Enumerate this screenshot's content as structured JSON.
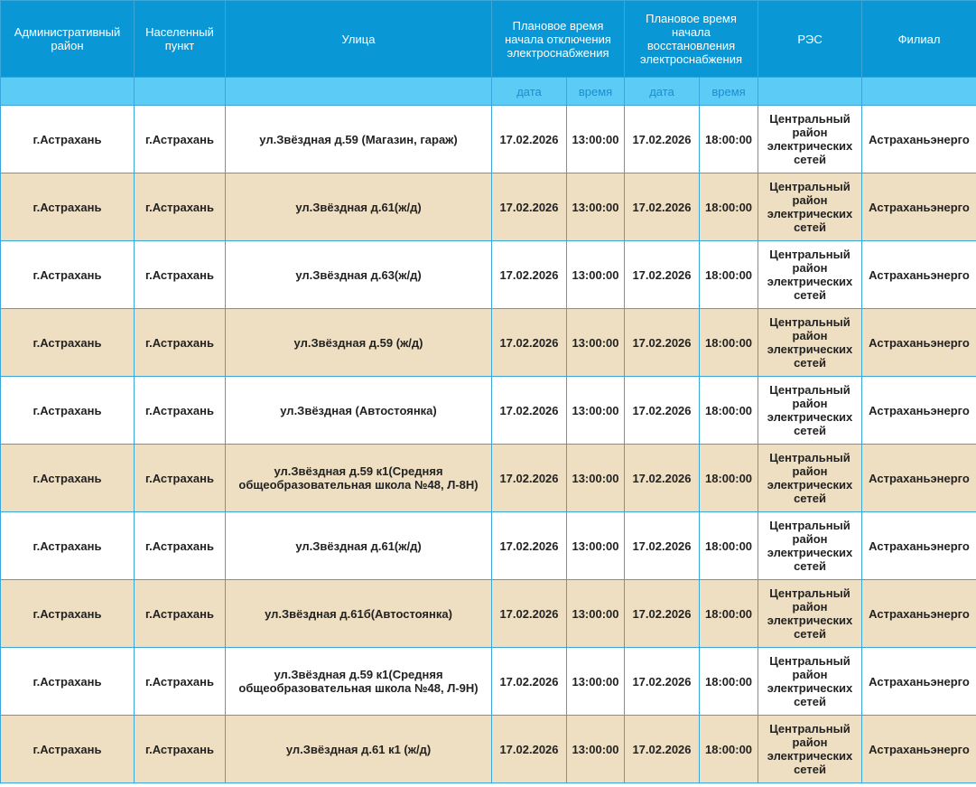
{
  "table": {
    "columns": [
      "Административный район",
      "Населенный пункт",
      "Улица",
      "Плановое время начала отключения электроснабжения",
      "Плановое время начала восстановления электроснабжения",
      "РЭС",
      "Филиал"
    ],
    "subcolumns": [
      "дата",
      "время",
      "дата",
      "время"
    ],
    "rows": [
      [
        "г.Астрахань",
        "г.Астрахань",
        "ул.Звёздная д.59 (Магазин, гараж)",
        "17.02.2026",
        "13:00:00",
        "17.02.2026",
        "18:00:00",
        "Центральный район электрических сетей",
        "Астраханьэнерго"
      ],
      [
        "г.Астрахань",
        "г.Астрахань",
        "ул.Звёздная д.61(ж/д)",
        "17.02.2026",
        "13:00:00",
        "17.02.2026",
        "18:00:00",
        "Центральный район электрических сетей",
        "Астраханьэнерго"
      ],
      [
        "г.Астрахань",
        "г.Астрахань",
        "ул.Звёздная д.63(ж/д)",
        "17.02.2026",
        "13:00:00",
        "17.02.2026",
        "18:00:00",
        "Центральный район электрических сетей",
        "Астраханьэнерго"
      ],
      [
        "г.Астрахань",
        "г.Астрахань",
        "ул.Звёздная д.59 (ж/д)",
        "17.02.2026",
        "13:00:00",
        "17.02.2026",
        "18:00:00",
        "Центральный район электрических сетей",
        "Астраханьэнерго"
      ],
      [
        "г.Астрахань",
        "г.Астрахань",
        "ул.Звёздная (Автостоянка)",
        "17.02.2026",
        "13:00:00",
        "17.02.2026",
        "18:00:00",
        "Центральный район электрических сетей",
        "Астраханьэнерго"
      ],
      [
        "г.Астрахань",
        "г.Астрахань",
        "ул.Звёздная д.59 к1(Средняя общеобразовательная школа №48, Л-8Н)",
        "17.02.2026",
        "13:00:00",
        "17.02.2026",
        "18:00:00",
        "Центральный район электрических сетей",
        "Астраханьэнерго"
      ],
      [
        "г.Астрахань",
        "г.Астрахань",
        "ул.Звёздная д.61(ж/д)",
        "17.02.2026",
        "13:00:00",
        "17.02.2026",
        "18:00:00",
        "Центральный район электрических сетей",
        "Астраханьэнерго"
      ],
      [
        "г.Астрахань",
        "г.Астрахань",
        "ул.Звёздная д.61б(Автостоянка)",
        "17.02.2026",
        "13:00:00",
        "17.02.2026",
        "18:00:00",
        "Центральный район электрических сетей",
        "Астраханьэнерго"
      ],
      [
        "г.Астрахань",
        "г.Астрахань",
        "ул.Звёздная д.59 к1(Средняя общеобразовательная школа №48, Л-9Н)",
        "17.02.2026",
        "13:00:00",
        "17.02.2026",
        "18:00:00",
        "Центральный район электрических сетей",
        "Астраханьэнерго"
      ],
      [
        "г.Астрахань",
        "г.Астрахань",
        "ул.Звёздная д.61 к1 (ж/д)",
        "17.02.2026",
        "13:00:00",
        "17.02.2026",
        "18:00:00",
        "Центральный район электрических сетей",
        "Астраханьэнерго"
      ]
    ]
  }
}
